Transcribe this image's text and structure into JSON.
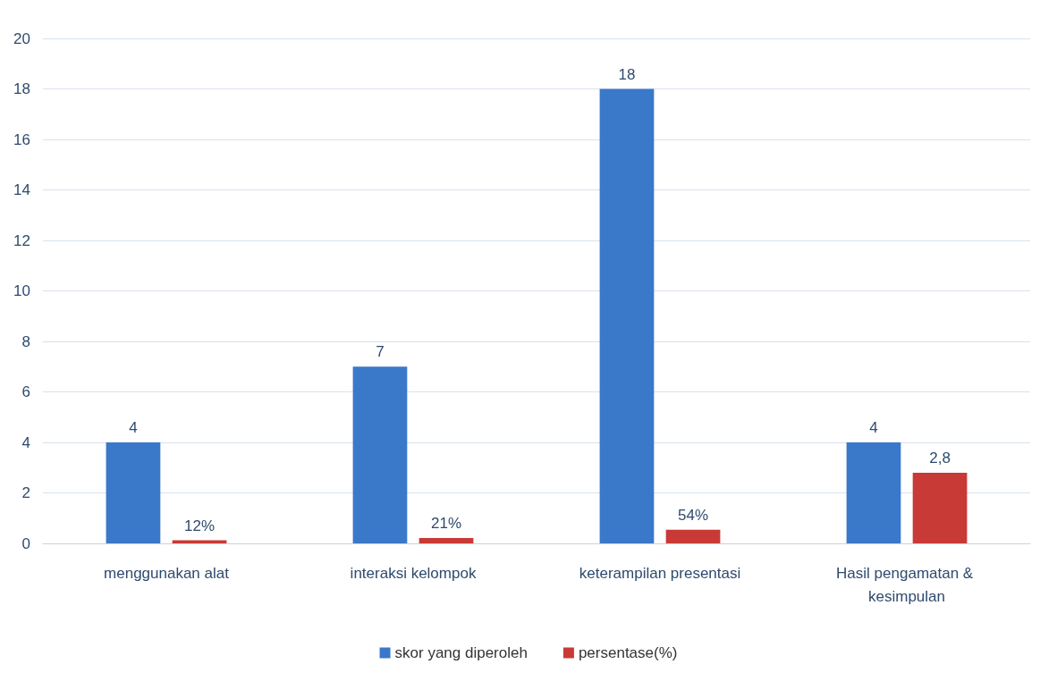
{
  "chart_data": {
    "type": "bar",
    "categories": [
      "menggunakan alat",
      "interaksi kelompok",
      "keterampilan presentasi",
      "Hasil pengamatan & kesimpulan"
    ],
    "series": [
      {
        "name": "skor yang diperoleh",
        "color": "#3a78c9",
        "values": [
          4,
          7,
          18,
          4
        ],
        "value_labels": [
          "4",
          "7",
          "18",
          "4"
        ]
      },
      {
        "name": "persentase(%)",
        "color": "#c83a36",
        "values": [
          0.12,
          0.21,
          0.54,
          2.8
        ],
        "value_labels": [
          "12%",
          "21%",
          "54%",
          "2,8"
        ]
      }
    ],
    "ylim": [
      0,
      20
    ],
    "yticks": [
      0,
      2,
      4,
      6,
      8,
      10,
      12,
      14,
      16,
      18,
      20
    ],
    "grid": "y",
    "legend": "bottom"
  }
}
